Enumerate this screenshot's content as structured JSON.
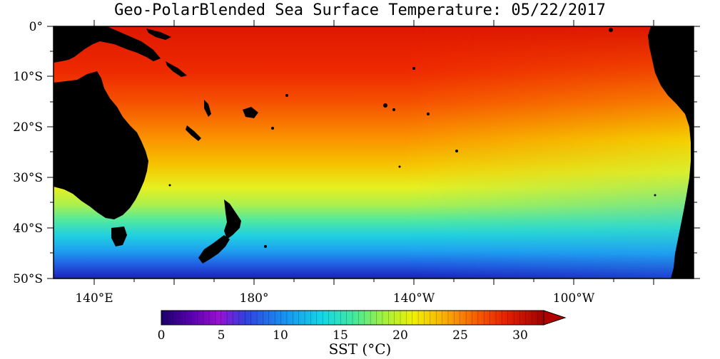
{
  "title": "Geo-PolarBlended Sea Surface Temperature: 05/22/2017",
  "y_ticks": [
    "0°",
    "10°S",
    "20°S",
    "30°S",
    "40°S",
    "50°S"
  ],
  "x_ticks": [
    "140°E",
    "180°",
    "140°W",
    "100°W"
  ],
  "colorbar": {
    "ticks": [
      "0",
      "5",
      "10",
      "15",
      "20",
      "25",
      "30"
    ],
    "label": "SST (°C)",
    "range": [
      0,
      32
    ]
  },
  "colors": {
    "land": "#000000",
    "warm": "#e02000",
    "cold": "#2030d0"
  }
}
